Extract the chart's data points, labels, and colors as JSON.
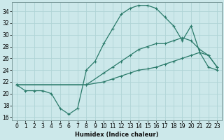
{
  "xlabel": "Humidex (Indice chaleur)",
  "bg_color": "#cce8ea",
  "grid_color": "#b0d4d6",
  "line_color": "#2a7a6a",
  "xlim": [
    -0.5,
    23.5
  ],
  "ylim": [
    15.5,
    35.5
  ],
  "xticks": [
    0,
    1,
    2,
    3,
    4,
    5,
    6,
    7,
    8,
    9,
    10,
    11,
    12,
    13,
    14,
    15,
    16,
    17,
    18,
    19,
    20,
    21,
    22,
    23
  ],
  "yticks": [
    16,
    18,
    20,
    22,
    24,
    26,
    28,
    30,
    32,
    34
  ],
  "line1_x": [
    0,
    1,
    2,
    3,
    4,
    5,
    6,
    7,
    8,
    9,
    10,
    11,
    12,
    13,
    14,
    15,
    16,
    17,
    18,
    19,
    20,
    21,
    22,
    23
  ],
  "line1_y": [
    21.5,
    20.5,
    20.5,
    20.5,
    20.0,
    17.5,
    16.5,
    17.5,
    24.0,
    25.5,
    28.5,
    31.0,
    33.5,
    34.5,
    35.0,
    35.0,
    34.5,
    33.0,
    31.5,
    29.0,
    31.5,
    27.0,
    26.5,
    24.5
  ],
  "line2_x": [
    0,
    8,
    10,
    11,
    12,
    13,
    14,
    15,
    16,
    17,
    18,
    19,
    20,
    21,
    22,
    23
  ],
  "line2_y": [
    21.5,
    21.5,
    23.5,
    24.5,
    25.5,
    26.5,
    27.5,
    28.0,
    28.5,
    28.5,
    29.0,
    29.5,
    29.0,
    27.5,
    26.5,
    24.5
  ],
  "line3_x": [
    0,
    8,
    10,
    11,
    12,
    13,
    14,
    15,
    16,
    17,
    18,
    19,
    20,
    21,
    22,
    23
  ],
  "line3_y": [
    21.5,
    21.5,
    22.0,
    22.5,
    23.0,
    23.5,
    24.0,
    24.2,
    24.5,
    25.0,
    25.5,
    26.0,
    26.5,
    27.0,
    24.5,
    24.0
  ],
  "marker": "+"
}
